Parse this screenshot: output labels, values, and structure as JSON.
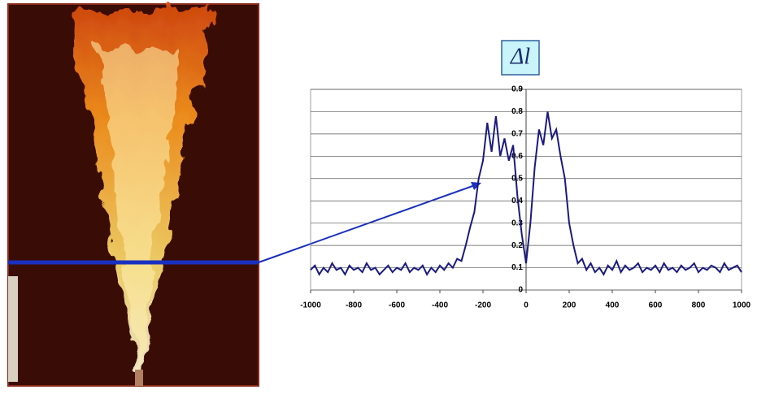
{
  "chart_data": {
    "type": "line",
    "title": "Δl",
    "x": [
      -1000,
      -980,
      -960,
      -940,
      -920,
      -900,
      -880,
      -860,
      -840,
      -820,
      -800,
      -780,
      -760,
      -740,
      -720,
      -700,
      -680,
      -660,
      -640,
      -620,
      -600,
      -580,
      -560,
      -540,
      -520,
      -500,
      -480,
      -460,
      -440,
      -420,
      -400,
      -380,
      -360,
      -340,
      -320,
      -300,
      -280,
      -260,
      -240,
      -220,
      -200,
      -180,
      -160,
      -140,
      -120,
      -100,
      -80,
      -60,
      -40,
      -20,
      0,
      20,
      40,
      60,
      80,
      100,
      120,
      140,
      160,
      180,
      200,
      220,
      240,
      260,
      280,
      300,
      320,
      340,
      360,
      380,
      400,
      420,
      440,
      460,
      480,
      500,
      520,
      540,
      560,
      580,
      600,
      620,
      640,
      660,
      680,
      700,
      720,
      740,
      760,
      780,
      800,
      820,
      840,
      860,
      880,
      900,
      920,
      940,
      960,
      980,
      1000
    ],
    "values": [
      0.09,
      0.11,
      0.07,
      0.1,
      0.08,
      0.12,
      0.09,
      0.1,
      0.07,
      0.11,
      0.09,
      0.1,
      0.08,
      0.12,
      0.09,
      0.1,
      0.07,
      0.09,
      0.11,
      0.08,
      0.1,
      0.09,
      0.12,
      0.08,
      0.1,
      0.09,
      0.11,
      0.07,
      0.1,
      0.08,
      0.11,
      0.09,
      0.12,
      0.1,
      0.14,
      0.13,
      0.2,
      0.28,
      0.35,
      0.5,
      0.58,
      0.75,
      0.62,
      0.78,
      0.6,
      0.68,
      0.58,
      0.65,
      0.42,
      0.25,
      0.12,
      0.3,
      0.55,
      0.72,
      0.65,
      0.8,
      0.68,
      0.72,
      0.6,
      0.5,
      0.3,
      0.2,
      0.12,
      0.14,
      0.09,
      0.12,
      0.08,
      0.1,
      0.07,
      0.11,
      0.09,
      0.13,
      0.08,
      0.11,
      0.09,
      0.1,
      0.12,
      0.08,
      0.1,
      0.09,
      0.11,
      0.08,
      0.12,
      0.09,
      0.1,
      0.08,
      0.11,
      0.09,
      0.1,
      0.12,
      0.08,
      0.1,
      0.09,
      0.11,
      0.1,
      0.08,
      0.12,
      0.09,
      0.1,
      0.11,
      0.08
    ],
    "color": "#1a1a80",
    "xlim": [
      -1000,
      1000
    ],
    "xticks": [
      -1000,
      -800,
      -600,
      -400,
      -200,
      0,
      200,
      400,
      600,
      800,
      1000
    ],
    "ylim": [
      0,
      0.9
    ],
    "yticks": [
      0,
      0.1,
      0.2,
      0.3,
      0.4,
      0.5,
      0.6,
      0.7,
      0.8,
      0.9
    ],
    "grid": true
  }
}
